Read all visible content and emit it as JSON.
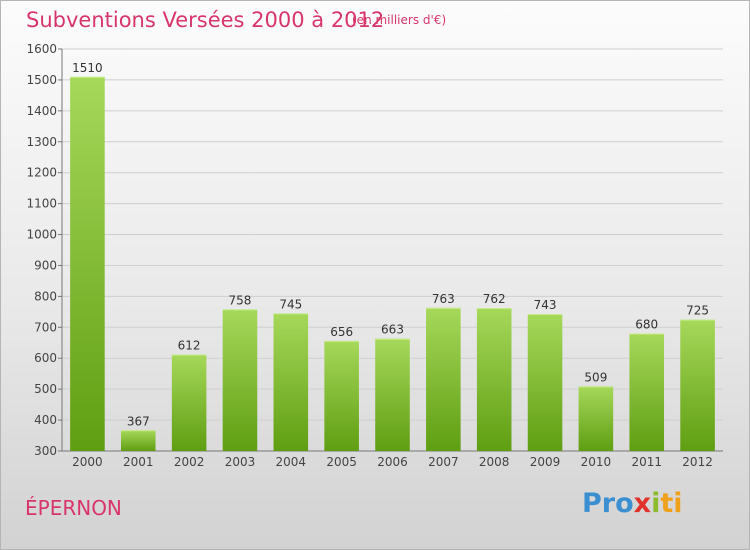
{
  "header": {
    "title": "Subventions Versées 2000 à 2012",
    "unit": "(en milliers d'€)"
  },
  "footer": {
    "city": "ÉPERNON",
    "logo": [
      "Pro",
      "x",
      "i",
      "ti"
    ]
  },
  "colors": {
    "accent": "#d8356a",
    "bar_top": "#a6d85a",
    "bar_bottom": "#5f9e12"
  },
  "chart_data": {
    "type": "bar",
    "categories": [
      "2000",
      "2001",
      "2002",
      "2003",
      "2004",
      "2005",
      "2006",
      "2007",
      "2008",
      "2009",
      "2010",
      "2011",
      "2012"
    ],
    "values": [
      1510,
      367,
      612,
      758,
      745,
      656,
      663,
      763,
      762,
      743,
      509,
      680,
      725
    ],
    "title": "Subventions Versées 2000 à 2012",
    "ylabel": "",
    "xlabel": "",
    "ylim": [
      300,
      1600
    ],
    "yticks": [
      300,
      400,
      500,
      600,
      700,
      800,
      900,
      1000,
      1100,
      1200,
      1300,
      1400,
      1500,
      1600
    ],
    "grid": true,
    "data_labels": true
  }
}
